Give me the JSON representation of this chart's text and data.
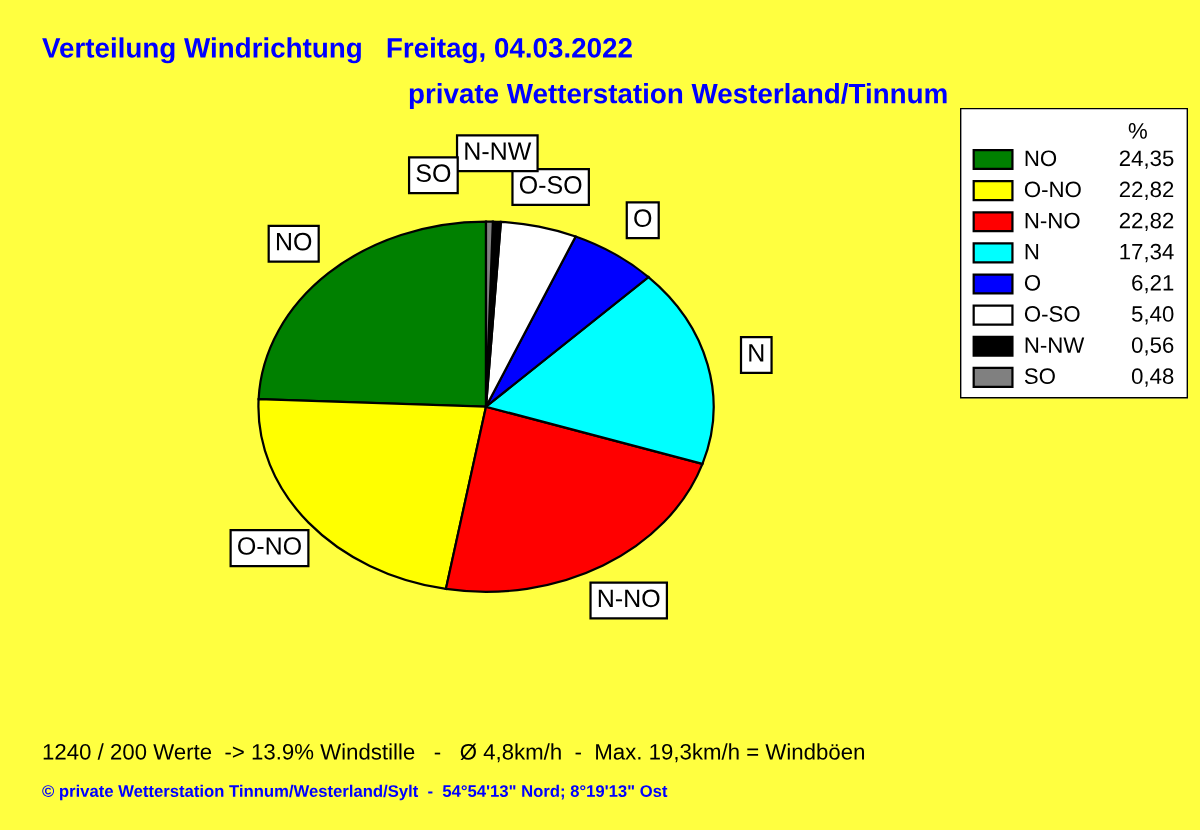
{
  "chart_data": {
    "type": "pie",
    "title": "Verteilung Windrichtung   Freitag, 04.03.2022",
    "subtitle": "private Wetterstation Westerland/Tinnum",
    "categories": [
      "NO",
      "O-NO",
      "N-NO",
      "N",
      "O",
      "O-SO",
      "N-NW",
      "SO"
    ],
    "values": [
      24.35,
      22.82,
      22.82,
      17.34,
      6.21,
      5.4,
      0.56,
      0.48
    ],
    "value_labels": [
      "24,35",
      "22,82",
      "22,82",
      "17,34",
      "6,21",
      "5,40",
      "0,56",
      "0,48"
    ],
    "colors": [
      "#008000",
      "#ffff00",
      "#ff0000",
      "#00ffff",
      "#0000ff",
      "#ffffff",
      "#000000",
      "#808080"
    ],
    "legend": "right",
    "legend_title": "%",
    "annotations": [
      "1240 / 200 Werte  -> 13.9% Windstille   -   Ø 4,8km/h  -  Max. 19,3km/h = Windböen",
      "© private Wetterstation Tinnum/Westerland/Sylt  -  54°54'13\" Nord; 8°19'13\" Ost"
    ]
  }
}
